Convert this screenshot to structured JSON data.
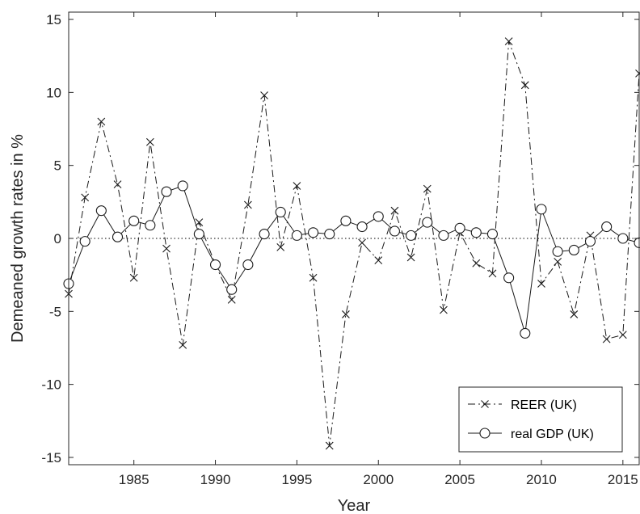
{
  "chart_data": {
    "type": "line",
    "title": "",
    "xlabel": "Year",
    "ylabel": "Demeaned growth rates in %",
    "xlim": [
      1981,
      2016
    ],
    "ylim": [
      -15.5,
      15.5
    ],
    "x_ticks": [
      1985,
      1990,
      1995,
      2000,
      2005,
      2010,
      2015
    ],
    "y_ticks": [
      -15,
      -10,
      -5,
      0,
      5,
      10,
      15
    ],
    "grid": false,
    "zero_reference_line": true,
    "legend_position": "bottom-right",
    "x": [
      1981,
      1982,
      1983,
      1984,
      1985,
      1986,
      1987,
      1988,
      1989,
      1990,
      1991,
      1992,
      1993,
      1994,
      1995,
      1996,
      1997,
      1998,
      1999,
      2000,
      2001,
      2002,
      2003,
      2004,
      2005,
      2006,
      2007,
      2008,
      2009,
      2010,
      2011,
      2012,
      2013,
      2014,
      2015,
      2016
    ],
    "series": [
      {
        "name": "REER (UK)",
        "marker": "x",
        "line_style": "dash-dot",
        "values": [
          -3.8,
          2.8,
          8.0,
          3.7,
          -2.7,
          6.6,
          -0.7,
          -7.3,
          1.1,
          -1.8,
          -4.2,
          2.3,
          9.8,
          -0.6,
          3.6,
          -2.7,
          -14.2,
          -5.2,
          -0.3,
          -1.5,
          1.9,
          -1.3,
          3.4,
          -4.9,
          0.4,
          -1.7,
          -2.4,
          13.5,
          10.5,
          -3.1,
          -1.6,
          -5.2,
          0.2,
          -6.9,
          -6.6,
          11.3
        ]
      },
      {
        "name": "real GDP (UK)",
        "marker": "o",
        "line_style": "solid",
        "values": [
          -3.1,
          -0.2,
          1.9,
          0.1,
          1.2,
          0.9,
          3.2,
          3.6,
          0.3,
          -1.8,
          -3.5,
          -1.8,
          0.3,
          1.8,
          0.2,
          0.4,
          0.3,
          1.2,
          0.8,
          1.5,
          0.5,
          0.2,
          1.1,
          0.2,
          0.7,
          0.4,
          0.3,
          -2.7,
          -6.5,
          2.0,
          -0.9,
          -0.8,
          -0.2,
          0.8,
          0.0,
          -0.3
        ]
      }
    ]
  }
}
